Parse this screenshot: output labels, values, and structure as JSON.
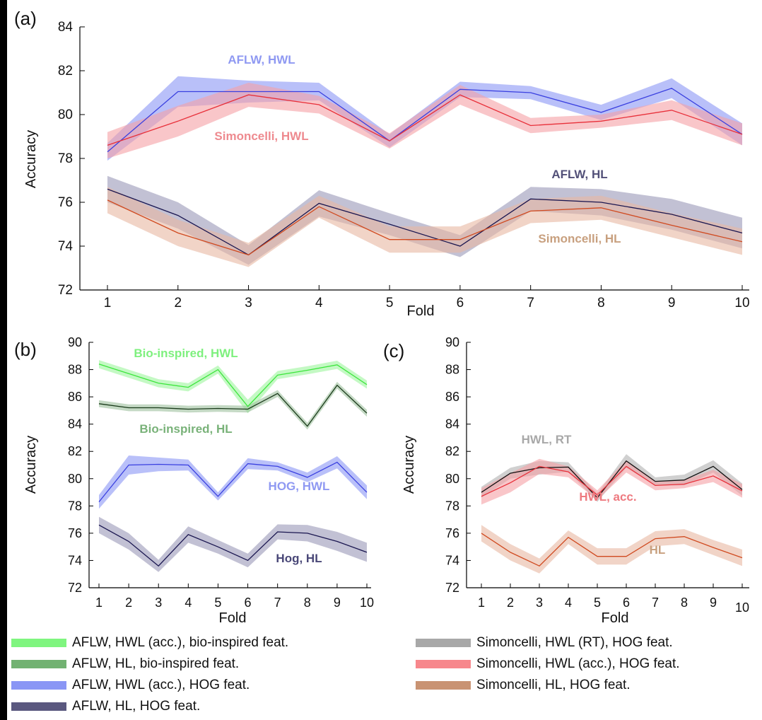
{
  "chart_data": [
    {
      "panel_label": "(a)",
      "type": "line",
      "xlabel": "Fold",
      "ylabel": "Accuracy",
      "x": [
        1,
        2,
        3,
        4,
        5,
        6,
        7,
        8,
        9,
        10
      ],
      "xticks": [
        "1",
        "2",
        "3",
        "4",
        "5",
        "6",
        "7",
        "8",
        "9",
        "10"
      ],
      "ylim": [
        72,
        84
      ],
      "yticks": [
        "72",
        "74",
        "76",
        "78",
        "80",
        "82",
        "84"
      ],
      "shaded_band": true,
      "grid": false,
      "series": [
        {
          "name": "AFLW, HWL",
          "color": "#3a40e0",
          "band": "#8a96f5",
          "values": [
            78.3,
            81.05,
            81.05,
            81.05,
            78.8,
            81.15,
            81.0,
            80.1,
            81.2,
            79.1
          ],
          "err": [
            0.4,
            0.7,
            0.5,
            0.4,
            0.3,
            0.35,
            0.3,
            0.35,
            0.45,
            0.5
          ]
        },
        {
          "name": "Simoncelli, HWL",
          "color": "#e8303a",
          "band": "#f5a0a5",
          "values": [
            78.6,
            79.7,
            80.9,
            80.45,
            78.8,
            80.9,
            79.5,
            79.7,
            80.2,
            79.1
          ],
          "err": [
            0.6,
            0.7,
            0.55,
            0.4,
            0.35,
            0.45,
            0.35,
            0.3,
            0.45,
            0.5
          ]
        },
        {
          "name": "AFLW, HL",
          "color": "#1a1650",
          "band": "#9a98b8",
          "values": [
            76.6,
            75.4,
            73.6,
            75.95,
            75.0,
            74.0,
            76.15,
            76.0,
            75.45,
            74.6
          ],
          "err": [
            0.6,
            0.6,
            0.45,
            0.6,
            0.5,
            0.5,
            0.55,
            0.6,
            0.7,
            0.7
          ]
        },
        {
          "name": "Simoncelli, HL",
          "color": "#d04a20",
          "band": "#e8b8a2",
          "values": [
            76.1,
            74.6,
            73.6,
            75.8,
            74.3,
            74.3,
            75.6,
            75.75,
            74.95,
            74.2
          ],
          "err": [
            0.6,
            0.6,
            0.55,
            0.5,
            0.6,
            0.6,
            0.55,
            0.55,
            0.55,
            0.6
          ]
        }
      ],
      "annotations": [
        {
          "text": "AFLW, HWL",
          "color": "#8f99f2"
        },
        {
          "text": "Simoncelli, HWL",
          "color": "#ee8a8f"
        },
        {
          "text": "AFLW, HL",
          "color": "#525078"
        },
        {
          "text": "Simoncelli, HL",
          "color": "#c8a07f"
        }
      ]
    },
    {
      "panel_label": "(b)",
      "type": "line",
      "xlabel": "Fold",
      "ylabel": "Accuracy",
      "x": [
        1,
        2,
        3,
        4,
        5,
        6,
        7,
        8,
        9,
        10
      ],
      "xticks": [
        "1",
        "2",
        "3",
        "4",
        "5",
        "6",
        "7",
        "8",
        "9",
        "10"
      ],
      "ylim": [
        72,
        90
      ],
      "yticks": [
        "72",
        "74",
        "76",
        "78",
        "80",
        "82",
        "84",
        "86",
        "88",
        "90"
      ],
      "shaded_band": true,
      "grid": false,
      "series": [
        {
          "name": "Bio-inspired, HWL",
          "color": "#3ce63c",
          "band": "#9cf59c",
          "values": [
            88.4,
            87.7,
            87.0,
            86.7,
            88.0,
            85.3,
            87.6,
            87.95,
            88.35,
            86.9
          ],
          "err": [
            0.3,
            0.3,
            0.3,
            0.3,
            0.3,
            0.5,
            0.3,
            0.3,
            0.3,
            0.3
          ]
        },
        {
          "name": "Bio-inspired, HL",
          "color": "#1a3a1a",
          "band": "#9cc09c",
          "values": [
            85.5,
            85.2,
            85.2,
            85.1,
            85.15,
            85.1,
            86.25,
            83.85,
            86.85,
            84.8
          ],
          "err": [
            0.25,
            0.25,
            0.25,
            0.25,
            0.25,
            0.25,
            0.25,
            0.25,
            0.25,
            0.25
          ]
        },
        {
          "name": "HOG, HWL",
          "color": "#3a40e0",
          "band": "#8a96f5",
          "values": [
            78.3,
            81.0,
            81.05,
            81.0,
            78.7,
            81.1,
            80.9,
            80.1,
            81.2,
            79.0
          ],
          "err": [
            0.5,
            0.7,
            0.5,
            0.4,
            0.3,
            0.4,
            0.3,
            0.35,
            0.45,
            0.5
          ]
        },
        {
          "name": "Hog, HL",
          "color": "#1a1650",
          "band": "#9a98b8",
          "values": [
            76.6,
            75.4,
            73.6,
            75.9,
            75.0,
            74.0,
            76.1,
            76.0,
            75.4,
            74.6
          ],
          "err": [
            0.6,
            0.6,
            0.45,
            0.6,
            0.5,
            0.5,
            0.55,
            0.6,
            0.7,
            0.7
          ]
        }
      ],
      "annotations": [
        {
          "text": "Bio-inspired, HWL",
          "color": "#7ef07e"
        },
        {
          "text": "Bio-inspired, HL",
          "color": "#79b279"
        },
        {
          "text": "HOG, HWL",
          "color": "#8f99f2"
        },
        {
          "text": "Hog, HL",
          "color": "#4a4878"
        }
      ]
    },
    {
      "panel_label": "(c)",
      "type": "line",
      "xlabel": "Fold",
      "ylabel": "Accuracy",
      "x": [
        1,
        2,
        3,
        4,
        5,
        6,
        7,
        8,
        9,
        10
      ],
      "xticks": [
        "1",
        "2",
        "3",
        "4",
        "5",
        "6",
        "7",
        "8",
        "9",
        "10"
      ],
      "ylim": [
        72,
        90
      ],
      "yticks": [
        "72",
        "74",
        "76",
        "78",
        "80",
        "82",
        "84",
        "86",
        "88",
        "90"
      ],
      "shaded_band": true,
      "grid": false,
      "series": [
        {
          "name": "HWL, RT",
          "color": "#111111",
          "band": "#b0b0b0",
          "values": [
            79.0,
            80.4,
            80.8,
            80.85,
            78.6,
            81.3,
            79.8,
            79.9,
            80.9,
            79.2
          ],
          "err": [
            0.4,
            0.4,
            0.5,
            0.35,
            0.3,
            0.5,
            0.3,
            0.4,
            0.45,
            0.45
          ]
        },
        {
          "name": "HWL, acc.",
          "color": "#e8303a",
          "band": "#f5a0a5",
          "values": [
            78.7,
            79.7,
            80.9,
            80.5,
            78.8,
            80.9,
            79.5,
            79.6,
            80.2,
            79.1
          ],
          "err": [
            0.6,
            0.7,
            0.55,
            0.4,
            0.35,
            0.45,
            0.35,
            0.3,
            0.45,
            0.5
          ]
        },
        {
          "name": "HL",
          "color": "#d04a20",
          "band": "#e8b8a2",
          "values": [
            76.0,
            74.6,
            73.6,
            75.7,
            74.3,
            74.3,
            75.6,
            75.75,
            74.95,
            74.2
          ],
          "err": [
            0.6,
            0.6,
            0.55,
            0.5,
            0.6,
            0.6,
            0.55,
            0.55,
            0.55,
            0.6
          ]
        }
      ],
      "annotations": [
        {
          "text": "HWL, RT",
          "color": "#a8a8a8"
        },
        {
          "text": "HWL, acc.",
          "color": "#ee7a80"
        },
        {
          "text": "HL",
          "color": "#c8a07f"
        }
      ]
    }
  ],
  "legend": [
    {
      "label": "AFLW, HWL (acc.), bio-inspired feat.",
      "color": "#7ff57f"
    },
    {
      "label": "AFLW, HL, bio-inspired feat.",
      "color": "#72b272"
    },
    {
      "label": "AFLW, HWL (acc.), HOG feat.",
      "color": "#8a96f5"
    },
    {
      "label": "AFLW, HL, HOG feat.",
      "color": "#5a587f"
    },
    {
      "label": "Simoncelli, HWL (RT), HOG feat.",
      "color": "#a8a8a8"
    },
    {
      "label": "Simoncelli, HWL (acc.), HOG feat.",
      "color": "#f7878c"
    },
    {
      "label": "Simoncelli, HL, HOG feat.",
      "color": "#c99373"
    }
  ]
}
